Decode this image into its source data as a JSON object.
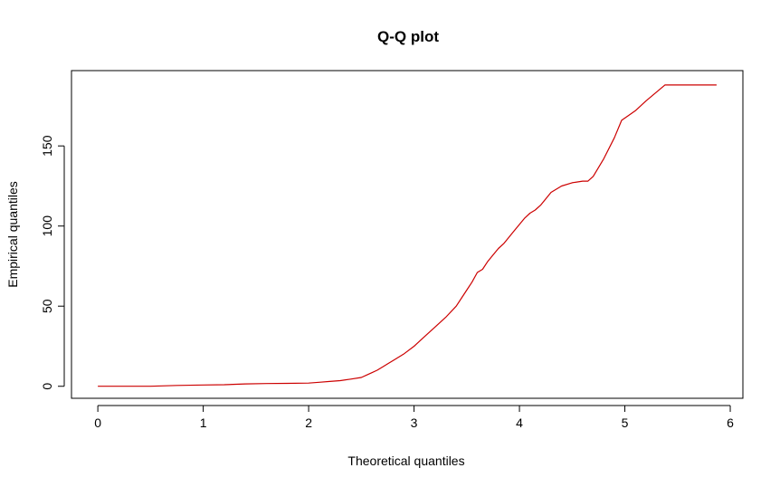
{
  "chart_data": {
    "type": "line",
    "title": "Q-Q plot",
    "xlabel": "Theoretical quantiles",
    "ylabel": "Empirical quantiles",
    "xlim": [
      -0.25,
      6.12
    ],
    "ylim": [
      -7.5,
      197
    ],
    "xticks": [
      0,
      1,
      2,
      3,
      4,
      5,
      6
    ],
    "yticks": [
      0,
      50,
      100,
      150
    ],
    "grid": false,
    "legend": "none",
    "series": [
      {
        "color": "#cc0000",
        "x": [
          0.0,
          0.5,
          0.75,
          1.0,
          1.2,
          1.4,
          1.6,
          1.8,
          2.0,
          2.1,
          2.2,
          2.3,
          2.4,
          2.5,
          2.55,
          2.6,
          2.65,
          2.7,
          2.75,
          2.8,
          2.9,
          3.0,
          3.1,
          3.2,
          3.3,
          3.4,
          3.5,
          3.55,
          3.6,
          3.65,
          3.7,
          3.75,
          3.8,
          3.85,
          3.9,
          3.95,
          4.0,
          4.05,
          4.1,
          4.15,
          4.2,
          4.3,
          4.4,
          4.5,
          4.6,
          4.65,
          4.7,
          4.8,
          4.9,
          4.97,
          5.1,
          5.2,
          5.38,
          5.5,
          5.65,
          5.87
        ],
        "y": [
          0,
          0,
          0.5,
          0.8,
          1.0,
          1.5,
          1.7,
          1.8,
          2.0,
          2.5,
          3.0,
          3.5,
          4.5,
          5.5,
          7.0,
          8.5,
          10.0,
          12.0,
          14.0,
          16.0,
          20.0,
          25.0,
          31.0,
          37.0,
          43.0,
          50.0,
          60.0,
          65.0,
          71.0,
          73.0,
          78.0,
          82.0,
          86.0,
          89.0,
          93.0,
          97.0,
          101.0,
          105.0,
          108.0,
          110.0,
          113.0,
          121.0,
          125.0,
          127.0,
          128.0,
          128.0,
          131.0,
          142.0,
          155.0,
          166.0,
          172.0,
          178.0,
          188.0,
          188.0,
          188.0,
          188.0
        ]
      }
    ]
  }
}
